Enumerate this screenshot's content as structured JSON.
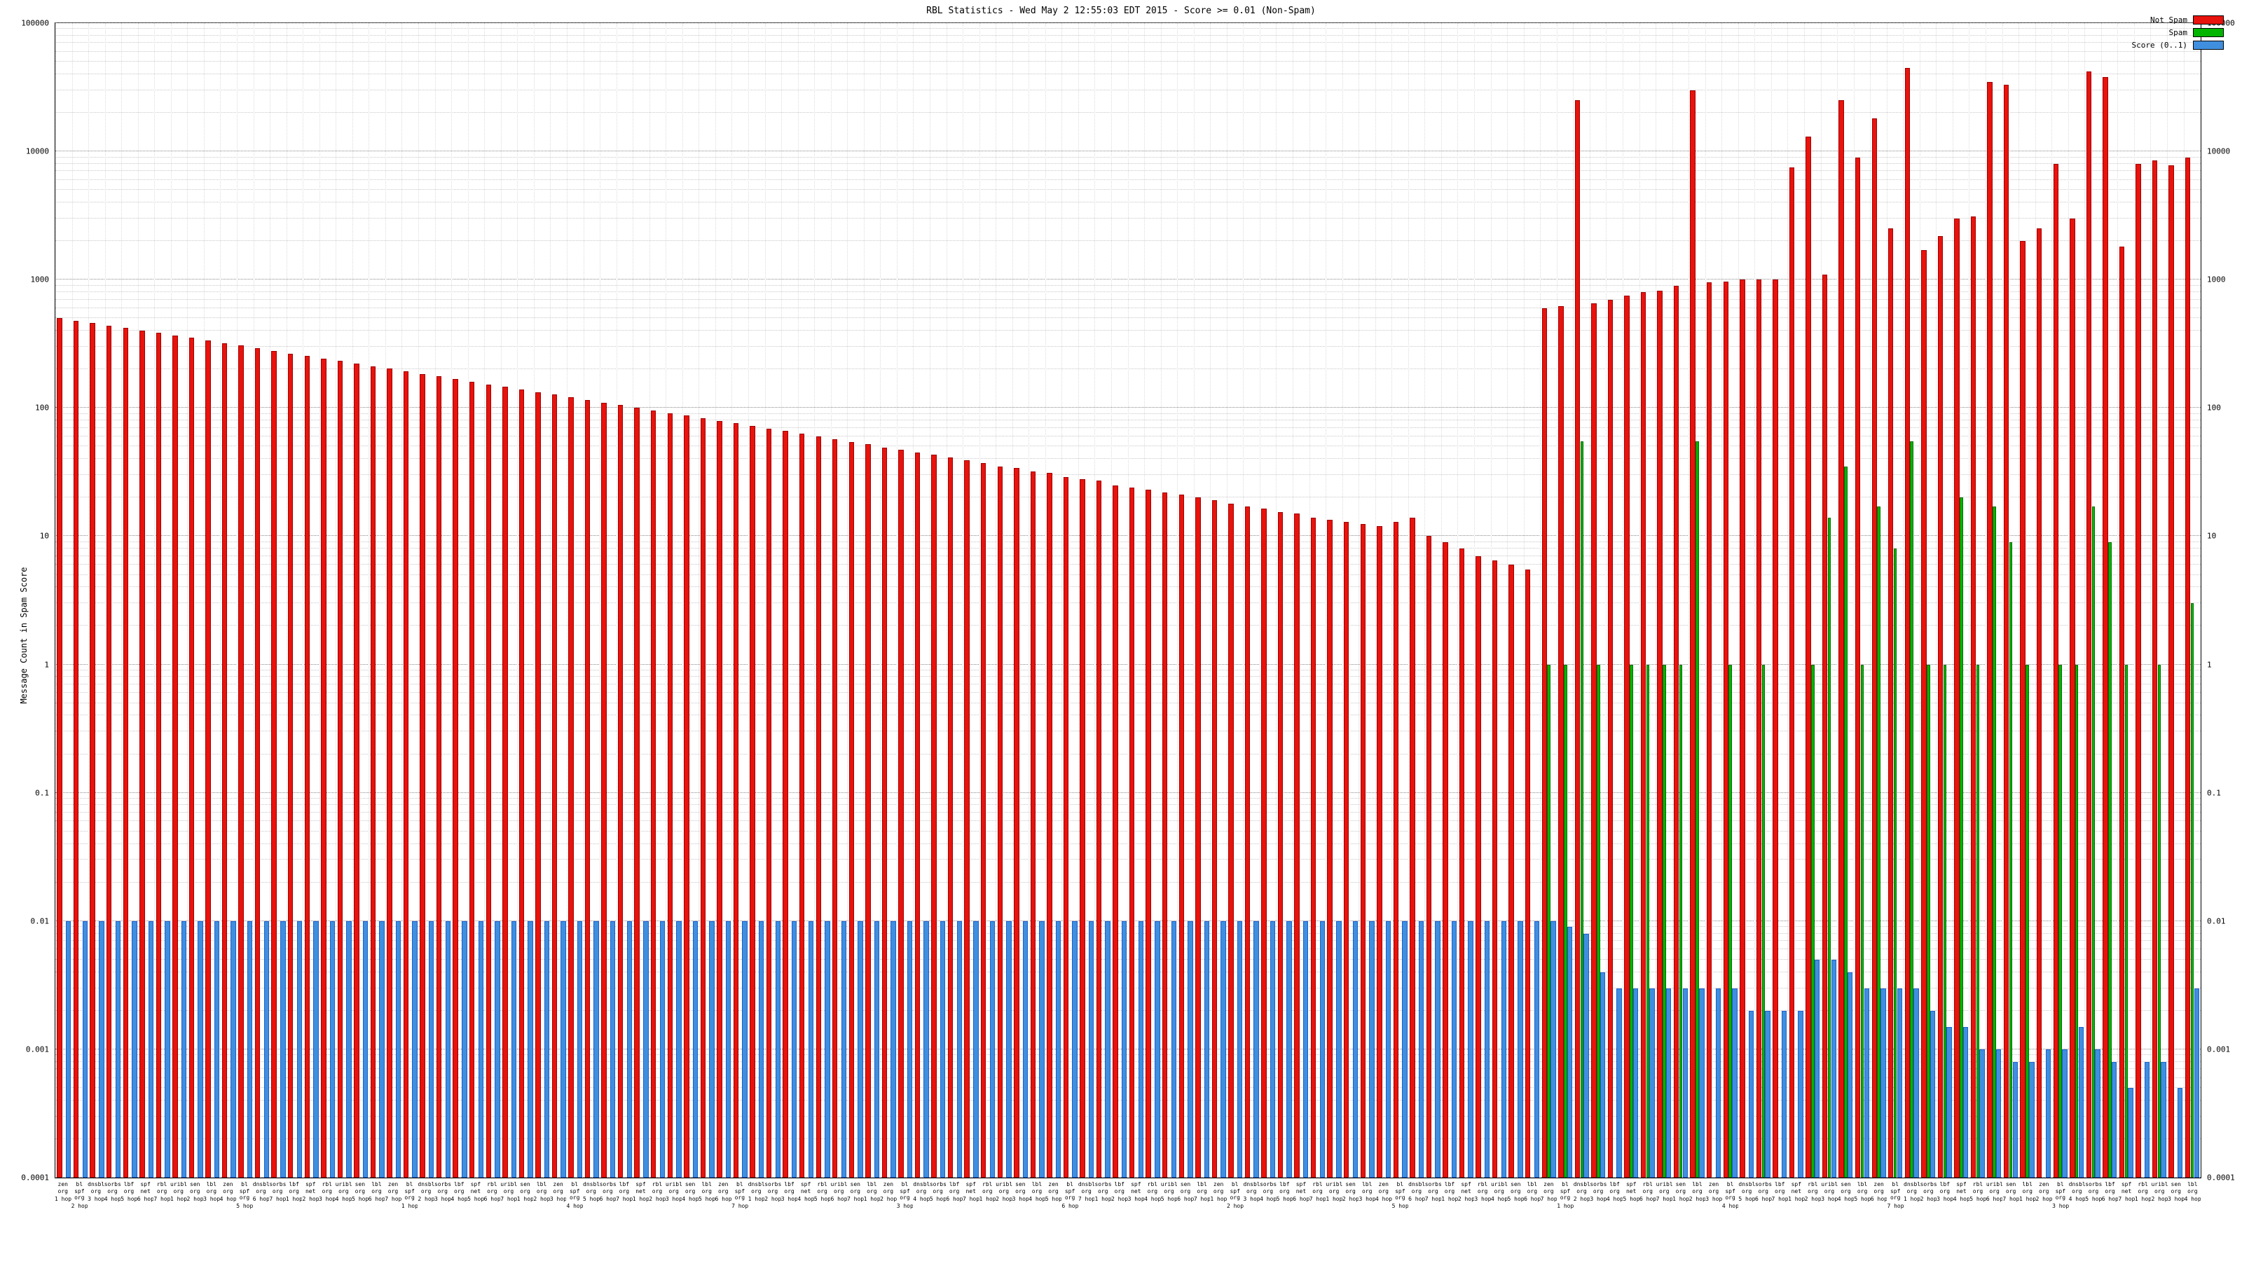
{
  "page": {
    "title": "RBL Statistics - Wed May 2 12:55:03 EDT 2015 - Score >= 0.01 (Non-Spam)"
  },
  "legend": {
    "items": [
      {
        "label": "Not Spam",
        "color": "#e8130c"
      },
      {
        "label": "Spam",
        "color": "#00b400"
      },
      {
        "label": "Score (0..1)",
        "color": "#3f8fde"
      }
    ]
  },
  "chart_data": {
    "type": "bar",
    "title": "RBL Statistics - Wed May 2 12:55:03 EDT 2015 - Score >= 0.01 (Non-Spam)",
    "xlabel": "",
    "ylabel": "Message Count in Spam Score",
    "y_scale": "log",
    "ylim": [
      0.0001,
      100000
    ],
    "y_ticks": [
      "100000",
      "10000",
      "1000",
      "100",
      "10",
      "1",
      "0.1",
      "0.01",
      "0.001",
      "0.0001"
    ],
    "grid": true,
    "legend_position": "top-right",
    "categories": [
      "zen.org|1 hop",
      "bl.spf.org|2 hops",
      "dnsbl.org|3 hops",
      "sorbs.org|4 hops",
      "lbf.org|5 hops",
      "spf.net|6 hops",
      "rbl.org|7 hops",
      "uribl.org|1 hop",
      "sen.org|2 hops",
      "lbl.org|3 hops",
      "zen.org|4 hops",
      "bl.spf.org|5 hops",
      "dnsbl.org|6 hops",
      "sorbs.org|7 hops",
      "lbf.org|1 hop",
      "spf.net|2 hops",
      "rbl.org|3 hops",
      "uribl.org|4 hops",
      "sen.org|5 hops",
      "lbl.org|6 hops",
      "zen.org|7 hops",
      "bl.spf.org|1 hop",
      "dnsbl.org|2 hops",
      "sorbs.org|3 hops",
      "lbf.org|4 hops",
      "spf.net|5 hops",
      "rbl.org|6 hops",
      "uribl.org|7 hops",
      "sen.org|1 hop",
      "lbl.org|2 hops",
      "zen.org|3 hops",
      "bl.spf.org|4 hops",
      "dnsbl.org|5 hops",
      "sorbs.org|6 hops",
      "lbf.org|7 hops",
      "spf.net|1 hop",
      "rbl.org|2 hops",
      "uribl.org|3 hops",
      "sen.org|4 hops",
      "lbl.org|5 hops",
      "zen.org|6 hops",
      "bl.spf.org|7 hops",
      "dnsbl.org|1 hop",
      "sorbs.org|2 hops",
      "lbf.org|3 hops",
      "spf.net|4 hops",
      "rbl.org|5 hops",
      "uribl.org|6 hops",
      "sen.org|7 hops",
      "lbl.org|1 hop",
      "zen.org|2 hops",
      "bl.spf.org|3 hops",
      "dnsbl.org|4 hops",
      "sorbs.org|5 hops",
      "lbf.org|6 hops",
      "spf.net|7 hops",
      "rbl.org|1 hop",
      "uribl.org|2 hops",
      "sen.org|3 hops",
      "lbl.org|4 hops",
      "zen.org|5 hops",
      "bl.spf.org|6 hops",
      "dnsbl.org|7 hops",
      "sorbs.org|1 hop",
      "lbf.org|2 hops",
      "spf.net|3 hops",
      "rbl.org|4 hops",
      "uribl.org|5 hops",
      "sen.org|6 hops",
      "lbl.org|7 hops",
      "zen.org|1 hop",
      "bl.spf.org|2 hops",
      "dnsbl.org|3 hops",
      "sorbs.org|4 hops",
      "lbf.org|5 hops",
      "spf.net|6 hops",
      "rbl.org|7 hops",
      "uribl.org|1 hop",
      "sen.org|2 hops",
      "lbl.org|3 hops",
      "zen.org|4 hops",
      "bl.spf.org|5 hops",
      "dnsbl.org|6 hops",
      "sorbs.org|7 hops",
      "lbf.org|1 hop",
      "spf.net|2 hops",
      "rbl.org|3 hops",
      "uribl.org|4 hops",
      "sen.org|5 hops",
      "lbl.org|6 hops",
      "zen.org|7 hops",
      "bl.spf.org|1 hop",
      "dnsbl.org|2 hops",
      "sorbs.org|3 hops",
      "lbf.org|4 hops",
      "spf.net|5 hops",
      "rbl.org|6 hops",
      "uribl.org|7 hops",
      "sen.org|1 hop",
      "lbl.org|2 hops",
      "zen.org|3 hops",
      "bl.spf.org|4 hops",
      "dnsbl.org|5 hops",
      "sorbs.org|6 hops",
      "lbf.org|7 hops",
      "spf.net|1 hop",
      "rbl.org|2 hops",
      "uribl.org|3 hops",
      "sen.org|4 hops",
      "lbl.org|5 hops",
      "zen.org|6 hops",
      "bl.spf.org|7 hops",
      "dnsbl.org|1 hop",
      "sorbs.org|2 hops",
      "lbf.org|3 hops",
      "spf.net|4 hops",
      "rbl.org|5 hops",
      "uribl.org|6 hops",
      "sen.org|7 hops",
      "lbl.org|1 hop",
      "zen.org|2 hops",
      "bl.spf.org|3 hops",
      "dnsbl.org|4 hops",
      "sorbs.org|5 hops",
      "lbf.org|6 hops",
      "spf.net|7 hops",
      "rbl.org|1 hop",
      "uribl.org|2 hops",
      "sen.org|3 hops",
      "lbl.org|4 hops"
    ],
    "series": [
      {
        "name": "Not Spam",
        "color": "#e8130c",
        "values": [
          500,
          480,
          460,
          440,
          420,
          400,
          385,
          368,
          352,
          336,
          320,
          306,
          292,
          279,
          266,
          254,
          243,
          232,
          222,
          212,
          202,
          193,
          184,
          176,
          168,
          160,
          153,
          146,
          140,
          133,
          127,
          121,
          116,
          110,
          105,
          100,
          96,
          91,
          87,
          83,
          79,
          76,
          72,
          69,
          66,
          63,
          60,
          57,
          54,
          52,
          49,
          47,
          45,
          43,
          41,
          39,
          37,
          35,
          34,
          32,
          31,
          29,
          28,
          27,
          25,
          24,
          23,
          22,
          21,
          20,
          19,
          18,
          17,
          16.5,
          15.5,
          15,
          14,
          13.5,
          13,
          12.5,
          12,
          13,
          14,
          10,
          9,
          8,
          7,
          6.5,
          6,
          5.5,
          600,
          620,
          25000,
          650,
          700,
          750,
          800,
          820,
          900,
          30000,
          950,
          960,
          1000,
          1000,
          1000,
          7500,
          13000,
          1100,
          25000,
          9000,
          18000,
          2500,
          45000,
          1700,
          2200,
          3000,
          3100,
          35000,
          33000,
          2000,
          2500,
          8000,
          3000,
          42000,
          38000,
          1800,
          8000,
          8500,
          7800,
          9000
        ]
      },
      {
        "name": "Spam",
        "color": "#00b400",
        "values": [
          0,
          0,
          0,
          0,
          0,
          0,
          0,
          0,
          0,
          0,
          0,
          0,
          0,
          0,
          0,
          0,
          0,
          0,
          0,
          0,
          0,
          0,
          0,
          0,
          0,
          0,
          0,
          0,
          0,
          0,
          0,
          0,
          0,
          0,
          0,
          0,
          0,
          0,
          0,
          0,
          0,
          0,
          0,
          0,
          0,
          0,
          0,
          0,
          0,
          0,
          0,
          0,
          0,
          0,
          0,
          0,
          0,
          0,
          0,
          0,
          0,
          0,
          0,
          0,
          0,
          0,
          0,
          0,
          0,
          0,
          0,
          0,
          0,
          0,
          0,
          0,
          0,
          0,
          0,
          0,
          0,
          0,
          0,
          0,
          0,
          0,
          0,
          0,
          0,
          0,
          1,
          1,
          55,
          1,
          0,
          1,
          1,
          1,
          1,
          55,
          0,
          1,
          0,
          1,
          0,
          0,
          1,
          14,
          35,
          1,
          17,
          8,
          55,
          1,
          1,
          20,
          1,
          17,
          9,
          1,
          0,
          1,
          1,
          17,
          9,
          1,
          0,
          1,
          0,
          3
        ]
      },
      {
        "name": "Score (0..1)",
        "color": "#3f8fde",
        "values": [
          0.01,
          0.01,
          0.01,
          0.01,
          0.01,
          0.01,
          0.01,
          0.01,
          0.01,
          0.01,
          0.01,
          0.01,
          0.01,
          0.01,
          0.01,
          0.01,
          0.01,
          0.01,
          0.01,
          0.01,
          0.01,
          0.01,
          0.01,
          0.01,
          0.01,
          0.01,
          0.01,
          0.01,
          0.01,
          0.01,
          0.01,
          0.01,
          0.01,
          0.01,
          0.01,
          0.01,
          0.01,
          0.01,
          0.01,
          0.01,
          0.01,
          0.01,
          0.01,
          0.01,
          0.01,
          0.01,
          0.01,
          0.01,
          0.01,
          0.01,
          0.01,
          0.01,
          0.01,
          0.01,
          0.01,
          0.01,
          0.01,
          0.01,
          0.01,
          0.01,
          0.01,
          0.01,
          0.01,
          0.01,
          0.01,
          0.01,
          0.01,
          0.01,
          0.01,
          0.01,
          0.01,
          0.01,
          0.01,
          0.01,
          0.01,
          0.01,
          0.01,
          0.01,
          0.01,
          0.01,
          0.01,
          0.01,
          0.01,
          0.01,
          0.01,
          0.01,
          0.01,
          0.01,
          0.01,
          0.01,
          0.01,
          0.009,
          0.008,
          0.004,
          0.003,
          0.003,
          0.003,
          0.003,
          0.003,
          0.003,
          0.003,
          0.003,
          0.002,
          0.002,
          0.002,
          0.002,
          0.005,
          0.005,
          0.004,
          0.003,
          0.003,
          0.003,
          0.003,
          0.002,
          0.0015,
          0.0015,
          0.001,
          0.001,
          0.0008,
          0.0008,
          0.001,
          0.001,
          0.0015,
          0.001,
          0.0008,
          0.0005,
          0.0008,
          0.0008,
          0.0005,
          0.003
        ]
      }
    ]
  }
}
